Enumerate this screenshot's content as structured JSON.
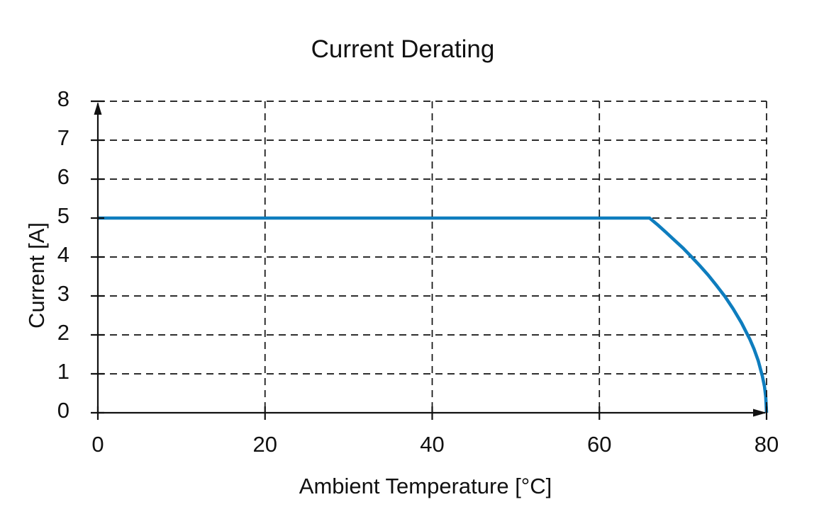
{
  "chart_data": {
    "type": "line",
    "title": "Current Derating",
    "xlabel": "Ambient Temperature [°C]",
    "ylabel": "Current [A]",
    "xlim": [
      0,
      80
    ],
    "ylim": [
      0,
      8
    ],
    "xticks": [
      0,
      20,
      40,
      60,
      80
    ],
    "yticks": [
      0,
      1,
      2,
      3,
      4,
      5,
      6,
      7,
      8
    ],
    "grid": "dashed",
    "legend": "none",
    "axis_arrows": true,
    "colors": {
      "line": "#0e7dbe",
      "axis": "#111111",
      "background": "#ffffff"
    },
    "series": [
      {
        "name": "Current Derating",
        "x": [
          0,
          66,
          67,
          68,
          69,
          70,
          71,
          72,
          73,
          74,
          75,
          76,
          77,
          78,
          78.5,
          79,
          79.5,
          79.75,
          79.9,
          80
        ],
        "y": [
          5,
          5,
          4.82,
          4.63,
          4.43,
          4.23,
          4.01,
          3.78,
          3.54,
          3.27,
          2.99,
          2.67,
          2.31,
          1.89,
          1.64,
          1.34,
          0.94,
          0.67,
          0.42,
          0
        ]
      }
    ]
  }
}
